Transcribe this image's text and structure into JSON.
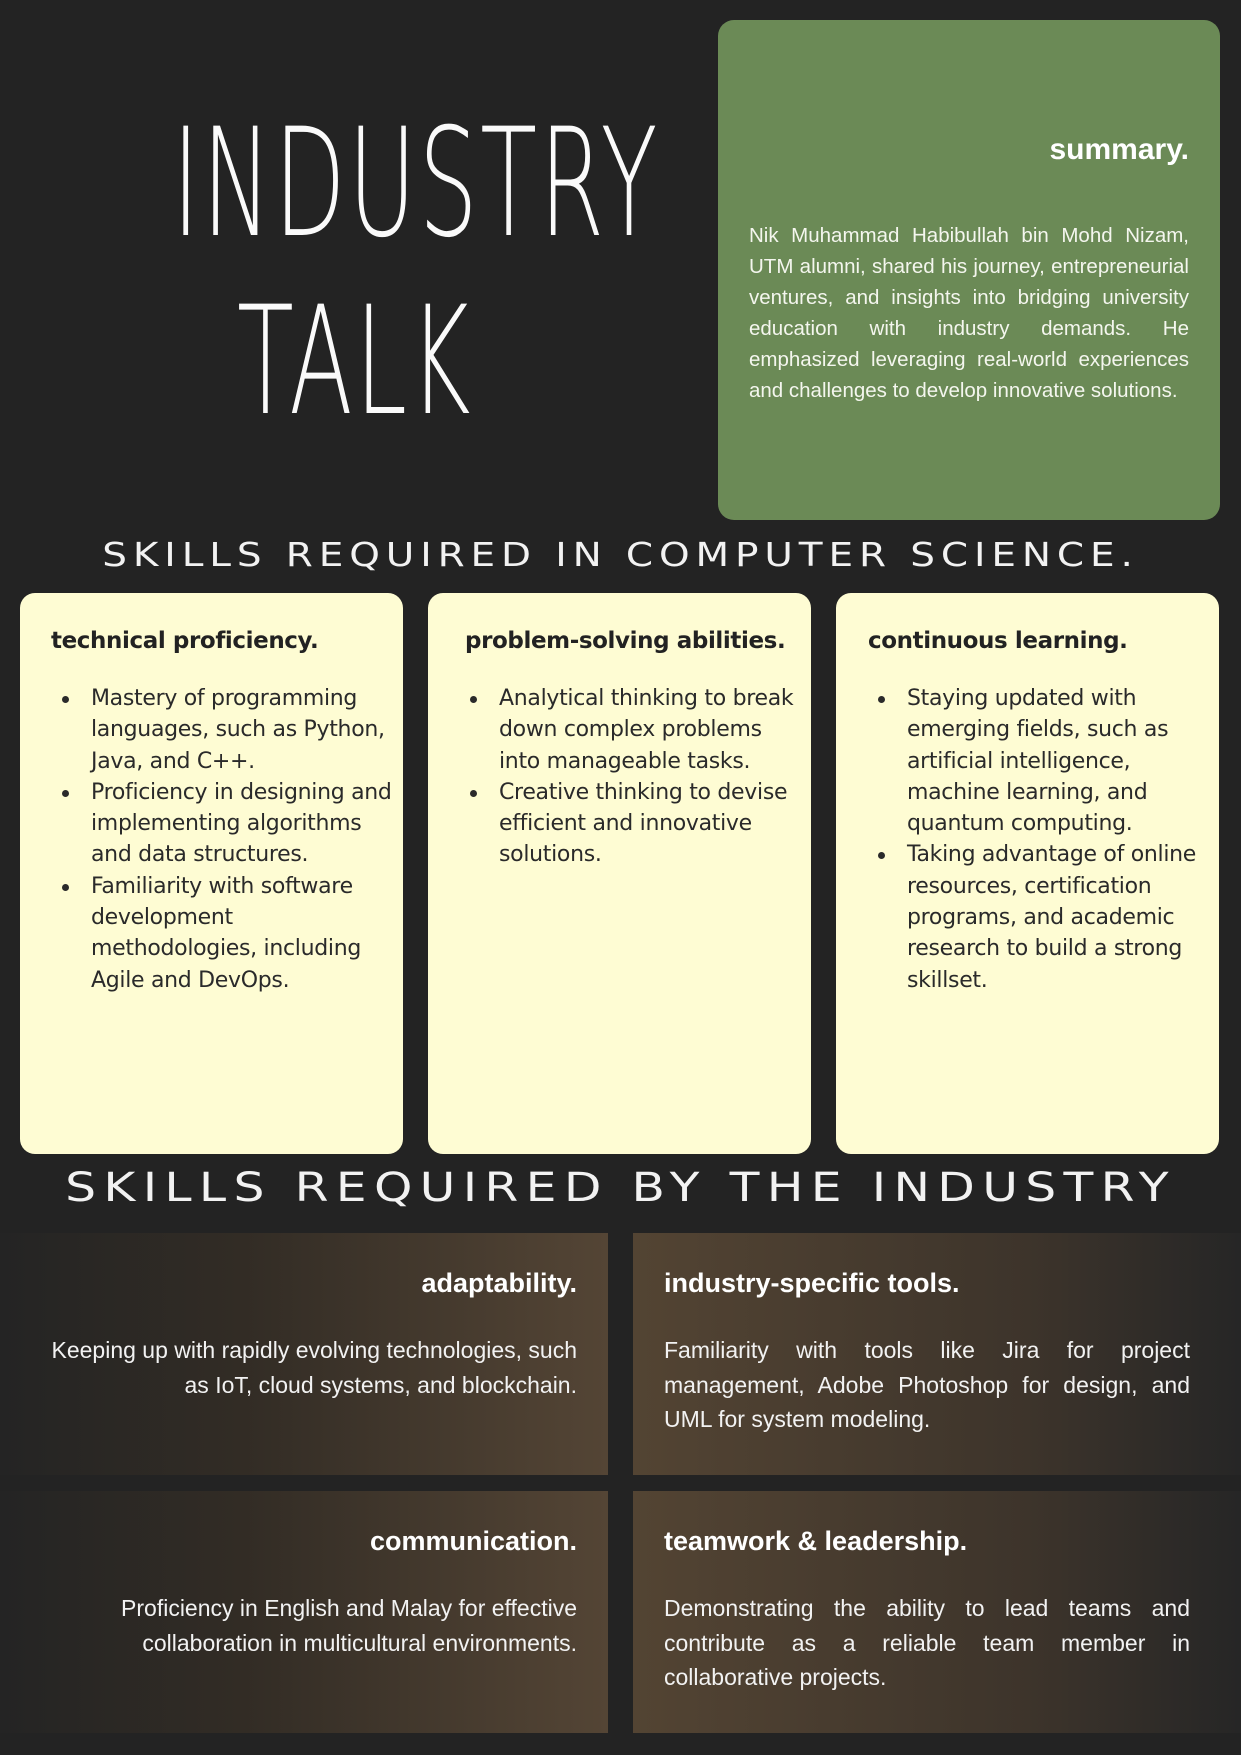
{
  "title": {
    "line1": "INDUSTRY",
    "line2": "TALK"
  },
  "summary": {
    "heading": "summary.",
    "text": "Nik Muhammad Habibullah bin Mohd Nizam, UTM alumni, shared his journey, entrepreneurial ventures, and insights into bridging university education with industry demands. He emphasized leveraging real-world experiences and challenges to develop innovative solutions."
  },
  "cs_section": {
    "heading": "SKILLS REQUIRED IN COMPUTER SCIENCE.",
    "cards": [
      {
        "title": "technical proficiency.",
        "items": [
          "Mastery of programming languages, such as Python, Java, and C++.",
          "Proficiency in designing and implementing algorithms and data structures.",
          "Familiarity with software development methodologies, including Agile and DevOps."
        ]
      },
      {
        "title": "problem-solving abilities.",
        "items": [
          "Analytical thinking to break down complex problems into manageable tasks.",
          "Creative thinking to devise efficient and innovative solutions."
        ]
      },
      {
        "title": "continuous learning.",
        "items": [
          "Staying updated with emerging fields, such as artificial intelligence, machine learning, and quantum computing.",
          "Taking advantage of online resources, certification programs, and academic research to build a strong skillset."
        ]
      }
    ]
  },
  "industry_section": {
    "heading": "SKILLS REQUIRED BY THE INDUSTRY",
    "panels": [
      {
        "title": "adaptability.",
        "text": "Keeping up with rapidly evolving technologies, such as IoT, cloud systems, and blockchain."
      },
      {
        "title": "industry-specific tools.",
        "text": "Familiarity with tools like Jira for project management, Adobe Photoshop for design, and UML for system modeling."
      },
      {
        "title": "communication.",
        "text": "Proficiency in English and Malay for effective collaboration in multicultural environments."
      },
      {
        "title": "teamwork & leadership.",
        "text": "Demonstrating the ability to lead teams and contribute as a reliable team member in collaborative projects."
      }
    ]
  }
}
